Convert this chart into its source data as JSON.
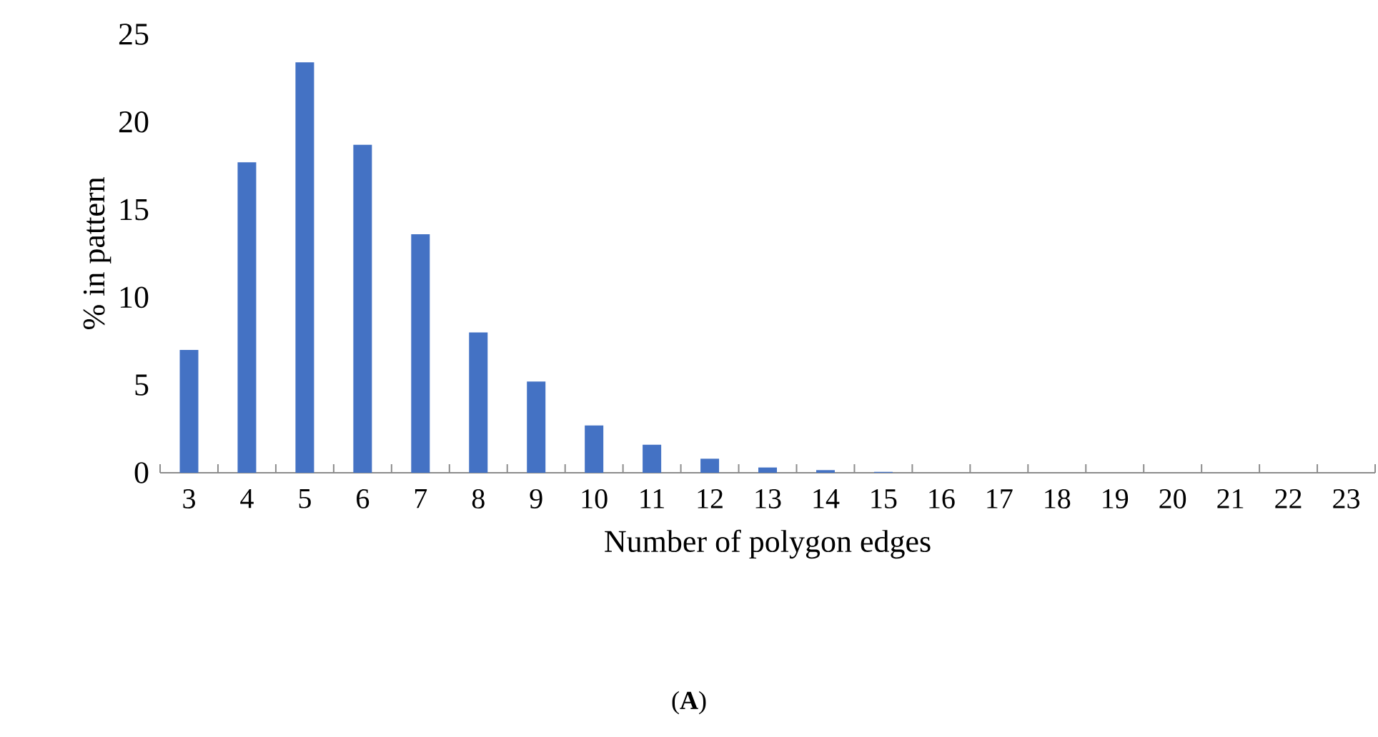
{
  "chart_data": {
    "type": "bar",
    "categories": [
      "3",
      "4",
      "5",
      "6",
      "7",
      "8",
      "9",
      "10",
      "11",
      "12",
      "13",
      "14",
      "15",
      "16",
      "17",
      "18",
      "19",
      "20",
      "21",
      "22",
      "23"
    ],
    "values": [
      7.0,
      17.7,
      23.4,
      18.7,
      13.6,
      8.0,
      5.2,
      2.7,
      1.6,
      0.8,
      0.3,
      0.15,
      0.05,
      0,
      0,
      0,
      0,
      0,
      0,
      0,
      0
    ],
    "color": "#4472c4",
    "xlabel": "Number of polygon edges",
    "ylabel": "% in pattern",
    "ylim": [
      0,
      25
    ],
    "yticks": [
      0,
      5,
      10,
      15,
      20,
      25
    ],
    "annotations": [
      "(**A**)"
    ]
  }
}
